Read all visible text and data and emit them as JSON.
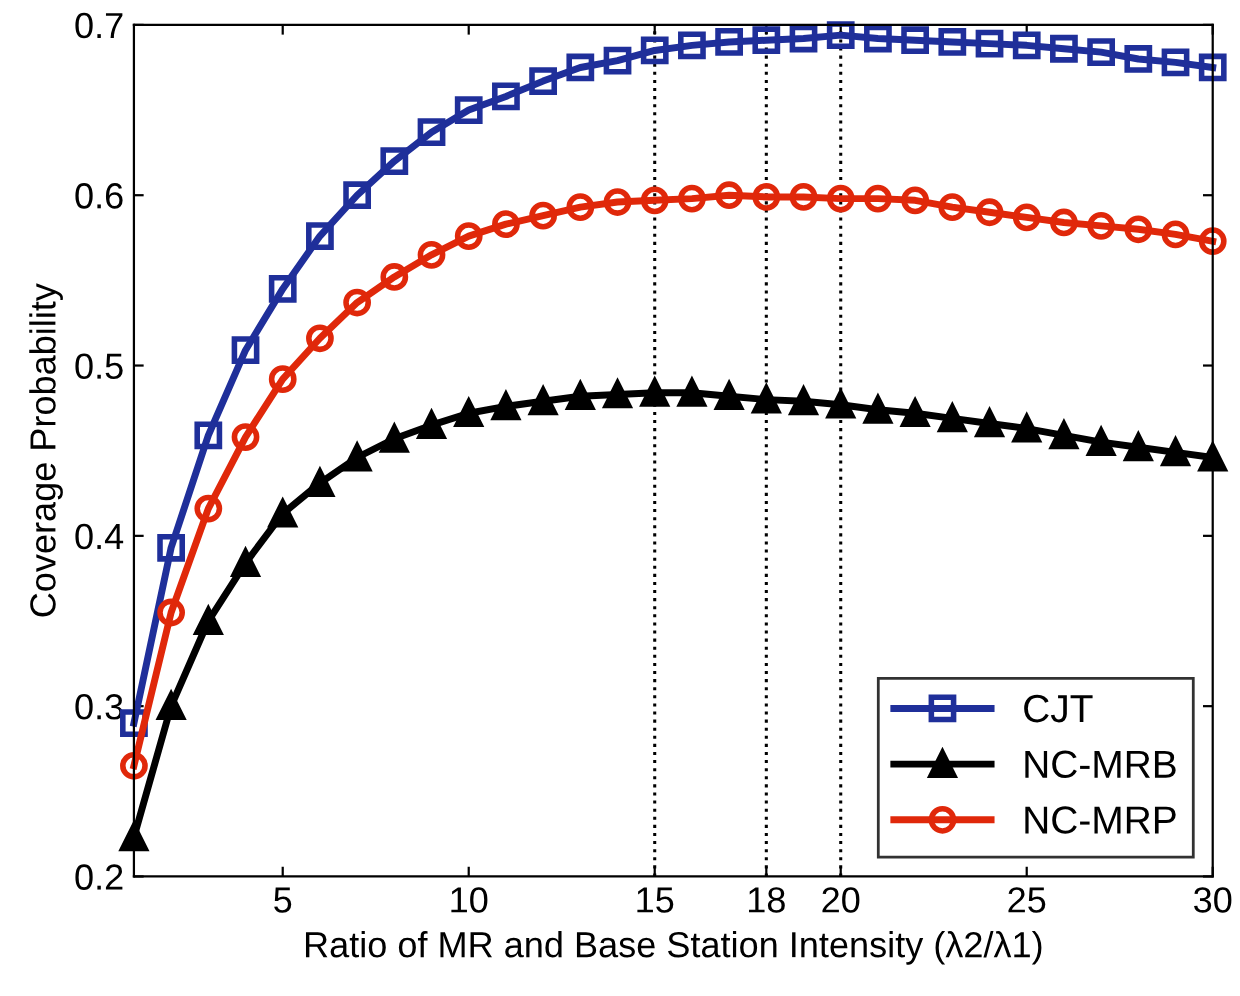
{
  "chart_data": {
    "type": "line",
    "xlabel": "Ratio of MR and Base Station Intensity (λ2/λ1)",
    "ylabel": "Coverage Probability",
    "x": [
      1,
      2,
      3,
      4,
      5,
      6,
      7,
      8,
      9,
      10,
      11,
      12,
      13,
      14,
      15,
      16,
      17,
      18,
      19,
      20,
      21,
      22,
      23,
      24,
      25,
      26,
      27,
      28,
      29,
      30
    ],
    "xlim": [
      1,
      30
    ],
    "ylim": [
      0.2,
      0.7
    ],
    "xticks": [
      5,
      10,
      15,
      18,
      20,
      25,
      30
    ],
    "yticks": [
      0.2,
      0.3,
      0.4,
      0.5,
      0.6,
      0.7
    ],
    "grid": false,
    "legend": "bottom right",
    "line_style": "solid",
    "series": [
      {
        "name": "CJT",
        "color": "#1f2f9a",
        "marker": "square",
        "values": [
          0.29,
          0.393,
          0.459,
          0.509,
          0.545,
          0.576,
          0.6,
          0.62,
          0.637,
          0.65,
          0.658,
          0.667,
          0.675,
          0.679,
          0.685,
          0.688,
          0.69,
          0.691,
          0.692,
          0.694,
          0.692,
          0.691,
          0.69,
          0.689,
          0.688,
          0.686,
          0.684,
          0.68,
          0.678,
          0.675
        ]
      },
      {
        "name": "NC-MRB",
        "color": "#000000",
        "marker": "triangle",
        "values": [
          0.223,
          0.3,
          0.35,
          0.384,
          0.413,
          0.431,
          0.446,
          0.457,
          0.465,
          0.472,
          0.476,
          0.479,
          0.482,
          0.483,
          0.484,
          0.484,
          0.482,
          0.48,
          0.479,
          0.477,
          0.474,
          0.472,
          0.469,
          0.466,
          0.463,
          0.459,
          0.455,
          0.452,
          0.449,
          0.446
        ]
      },
      {
        "name": "NC-MRP",
        "color": "#e0280a",
        "marker": "circle",
        "values": [
          0.265,
          0.355,
          0.416,
          0.458,
          0.492,
          0.516,
          0.537,
          0.552,
          0.565,
          0.576,
          0.583,
          0.588,
          0.593,
          0.596,
          0.597,
          0.598,
          0.6,
          0.599,
          0.599,
          0.598,
          0.598,
          0.597,
          0.593,
          0.59,
          0.587,
          0.584,
          0.582,
          0.58,
          0.577,
          0.573
        ]
      }
    ],
    "ref_lines": [
      {
        "axis": "x",
        "value": 15,
        "color": "#000000",
        "line_style": "dotted"
      },
      {
        "axis": "x",
        "value": 18,
        "color": "#000000",
        "line_style": "dotted"
      },
      {
        "axis": "x",
        "value": 20,
        "color": "#000000",
        "line_style": "dotted"
      }
    ]
  }
}
